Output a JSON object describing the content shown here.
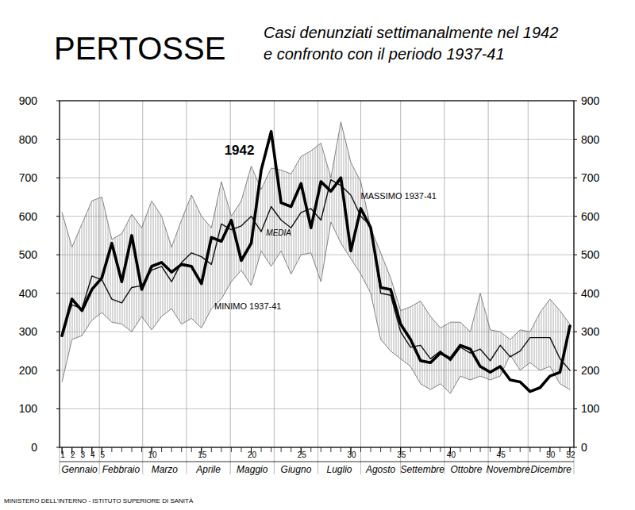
{
  "chart_data": {
    "type": "line",
    "title": "PERTOSSE",
    "subtitle": [
      "Casi denunziati settimanalmente nel 1942",
      "e confronto con il periodo 1937-41"
    ],
    "footer": "MINISTERO DELL'INTERNO - ISTITUTO SUPERIORE DI SANITÀ",
    "x": [
      1,
      2,
      3,
      4,
      5,
      6,
      7,
      8,
      9,
      10,
      11,
      12,
      13,
      14,
      15,
      16,
      17,
      18,
      19,
      20,
      21,
      22,
      23,
      24,
      25,
      26,
      27,
      28,
      29,
      30,
      31,
      32,
      33,
      34,
      35,
      36,
      37,
      38,
      39,
      40,
      41,
      42,
      43,
      44,
      45,
      46,
      47,
      48,
      49,
      50,
      51,
      52
    ],
    "xlim": [
      0.75,
      52.4
    ],
    "xticks": [
      1,
      2,
      3,
      4,
      5,
      10,
      15,
      20,
      25,
      30,
      35,
      40,
      45,
      50,
      52
    ],
    "ylim": [
      0,
      900
    ],
    "yticks": [
      0,
      100,
      200,
      300,
      400,
      500,
      600,
      700,
      800,
      900
    ],
    "y2lim": [
      0,
      900
    ],
    "y2ticks": [
      0,
      100,
      200,
      300,
      400,
      500,
      600,
      700,
      800,
      900
    ],
    "grid": true,
    "months": [
      "Gennaio",
      "Febbraio",
      "Marzo",
      "Aprile",
      "Maggio",
      "Giugno",
      "Luglio",
      "Agosto",
      "Settembre",
      "Ottobre",
      "Novembre",
      "Dicembre"
    ],
    "month_bounds": [
      0.75,
      4.75,
      9.1,
      13.5,
      17.9,
      22.3,
      26.7,
      31,
      35,
      39.4,
      43.8,
      47.8,
      52.4
    ],
    "series": [
      {
        "name": "MASSIMO 1937-41",
        "type": "band",
        "color": "#666666",
        "line_style": "thin",
        "values": [
          610,
          520,
          580,
          640,
          650,
          540,
          555,
          605,
          570,
          640,
          600,
          520,
          590,
          655,
          600,
          570,
          690,
          600,
          640,
          730,
          670,
          725,
          720,
          710,
          755,
          770,
          790,
          700,
          845,
          740,
          690,
          570,
          505,
          440,
          355,
          365,
          380,
          340,
          310,
          325,
          325,
          300,
          400,
          305,
          300,
          280,
          305,
          300,
          350,
          385,
          355,
          320
        ]
      },
      {
        "name": "MINIMO 1937-41",
        "type": "band",
        "color": "#666666",
        "line_style": "thin",
        "values": [
          170,
          280,
          290,
          330,
          350,
          325,
          320,
          300,
          340,
          305,
          340,
          360,
          320,
          335,
          310,
          360,
          385,
          430,
          460,
          420,
          510,
          470,
          510,
          450,
          500,
          505,
          430,
          585,
          530,
          490,
          450,
          400,
          280,
          250,
          230,
          210,
          165,
          150,
          165,
          140,
          185,
          175,
          185,
          175,
          185,
          240,
          200,
          220,
          200,
          210,
          165,
          150
        ]
      },
      {
        "name": "MEDIA",
        "type": "line",
        "color": "#111111",
        "line_style": "solid",
        "values": [
          300,
          370,
          360,
          445,
          435,
          385,
          375,
          415,
          420,
          460,
          470,
          430,
          480,
          505,
          495,
          475,
          580,
          565,
          575,
          600,
          560,
          625,
          590,
          570,
          610,
          620,
          590,
          695,
          680,
          655,
          600,
          575,
          400,
          395,
          300,
          260,
          265,
          230,
          250,
          225,
          260,
          245,
          255,
          225,
          265,
          235,
          250,
          285,
          285,
          285,
          230,
          200
        ]
      },
      {
        "name": "1942",
        "type": "line",
        "color": "#000000",
        "line_style": "bold",
        "values": [
          290,
          385,
          355,
          410,
          440,
          530,
          430,
          550,
          410,
          470,
          480,
          455,
          475,
          470,
          425,
          545,
          535,
          590,
          485,
          530,
          720,
          820,
          635,
          625,
          685,
          570,
          690,
          665,
          700,
          510,
          620,
          570,
          415,
          410,
          320,
          280,
          225,
          220,
          245,
          230,
          265,
          255,
          210,
          195,
          210,
          175,
          170,
          145,
          155,
          185,
          195,
          315
        ]
      }
    ],
    "annotations": [
      {
        "text": "1942",
        "x": 17.3,
        "y": 760
      },
      {
        "text": "MEDIA",
        "x": 21.5,
        "y": 550
      },
      {
        "text": "MASSIMO 1937-41",
        "x": 31,
        "y": 645
      },
      {
        "text": "MINIMO 1937-41",
        "x": 16.3,
        "y": 358
      }
    ]
  }
}
